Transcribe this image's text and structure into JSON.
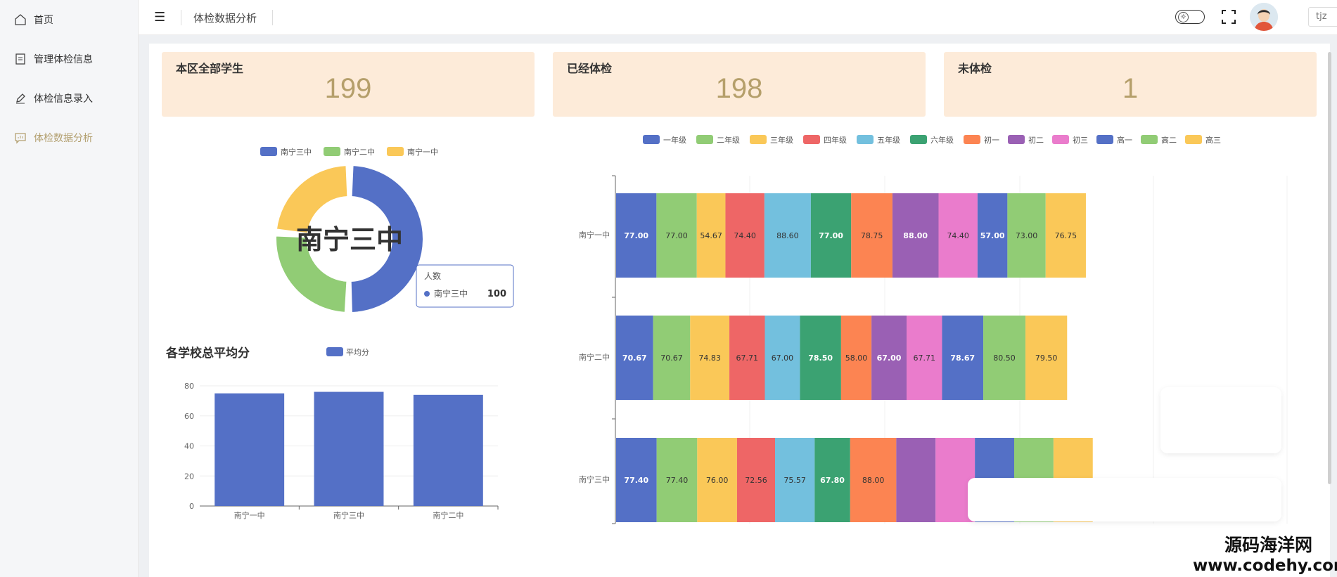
{
  "sidebar": {
    "items": [
      {
        "label": "首页",
        "icon": "home-icon"
      },
      {
        "label": "管理体检信息",
        "icon": "document-icon"
      },
      {
        "label": "体检信息录入",
        "icon": "pen-icon"
      },
      {
        "label": "体检数据分析",
        "icon": "chat-chart-icon",
        "active": true
      }
    ]
  },
  "header": {
    "title": "体检数据分析",
    "user": "tjz"
  },
  "stats": [
    {
      "label": "本区全部学生",
      "value": "199"
    },
    {
      "label": "已经体检",
      "value": "198"
    },
    {
      "label": "未体检",
      "value": "1"
    }
  ],
  "colors": {
    "accent": "#b3a070",
    "card_bg": "#fdebd9",
    "palette": [
      "#5470c6",
      "#91cc75",
      "#fac858",
      "#ee6666",
      "#73c0de",
      "#3ba272",
      "#fc8452",
      "#9a60b4",
      "#ea7ccc",
      "#5470c6",
      "#91cc75",
      "#fac858"
    ]
  },
  "chart_data": [
    {
      "type": "pie",
      "variant": "donut",
      "legend": [
        "南宁三中",
        "南宁二中",
        "南宁一中"
      ],
      "legend_position": "top",
      "center_label": "南宁三中",
      "slices": [
        {
          "name": "南宁三中",
          "value": 100
        },
        {
          "name": "南宁二中",
          "value": 52
        },
        {
          "name": "南宁一中",
          "value": 47
        }
      ],
      "tooltip": {
        "title": "人数",
        "name": "南宁三中",
        "value": "100"
      }
    },
    {
      "type": "bar",
      "title": "各学校总平均分",
      "legend": [
        "平均分"
      ],
      "categories": [
        "南宁一中",
        "南宁三中",
        "南宁二中"
      ],
      "series": [
        {
          "name": "平均分",
          "values": [
            75,
            76,
            74
          ]
        }
      ],
      "ylim": [
        0,
        80
      ],
      "yticks": [
        0,
        20,
        40,
        60,
        80
      ],
      "grid": true
    },
    {
      "type": "bar",
      "orientation": "horizontal",
      "stacked": true,
      "legend": [
        "一年级",
        "二年级",
        "三年级",
        "四年级",
        "五年级",
        "六年级",
        "初一",
        "初二",
        "初三",
        "高一",
        "高二",
        "高三"
      ],
      "legend_position": "top",
      "categories": [
        "南宁一中",
        "南宁二中",
        "南宁三中"
      ],
      "series": [
        {
          "name": "一年级",
          "values": [
            77.0,
            70.67,
            77.4
          ],
          "labels": [
            "77.00",
            "70.67",
            "77.40"
          ]
        },
        {
          "name": "二年级",
          "values": [
            77.0,
            70.67,
            77.4
          ],
          "labels": [
            "77.00",
            "70.67",
            "77.40"
          ]
        },
        {
          "name": "三年级",
          "values": [
            54.67,
            74.83,
            76.0
          ],
          "labels": [
            "54.67",
            "74.83",
            "76.00"
          ]
        },
        {
          "name": "四年级",
          "values": [
            74.4,
            67.71,
            72.56
          ],
          "labels": [
            "74.40",
            "67.71",
            "72.56"
          ]
        },
        {
          "name": "五年级",
          "values": [
            88.6,
            67.0,
            75.57
          ],
          "labels": [
            "88.60",
            "67.00",
            "75.57"
          ]
        },
        {
          "name": "六年级",
          "values": [
            77.0,
            78.5,
            67.8
          ],
          "labels": [
            "77.00",
            "78.50",
            "67.80"
          ]
        },
        {
          "name": "初一",
          "values": [
            78.75,
            58.0,
            88.0
          ],
          "labels": [
            "78.75",
            "58.00",
            "88.00"
          ]
        },
        {
          "name": "初二",
          "values": [
            88.0,
            67.0,
            75.0
          ],
          "labels": [
            "88.00",
            "67.00",
            ""
          ]
        },
        {
          "name": "初三",
          "values": [
            74.4,
            67.71,
            75.0
          ],
          "labels": [
            "74.40",
            "67.71",
            ""
          ]
        },
        {
          "name": "高一",
          "values": [
            57.0,
            78.67,
            75.0
          ],
          "labels": [
            "57.00",
            "78.67",
            ""
          ]
        },
        {
          "name": "高二",
          "values": [
            73.0,
            80.5,
            75.0
          ],
          "labels": [
            "73.00",
            "80.50",
            ""
          ]
        },
        {
          "name": "高三",
          "values": [
            76.75,
            79.5,
            75.0
          ],
          "labels": [
            "76.75",
            "79.50",
            ""
          ]
        }
      ]
    }
  ],
  "watermark": {
    "line1": "源码海洋网",
    "line2": "www.codehy.com"
  }
}
